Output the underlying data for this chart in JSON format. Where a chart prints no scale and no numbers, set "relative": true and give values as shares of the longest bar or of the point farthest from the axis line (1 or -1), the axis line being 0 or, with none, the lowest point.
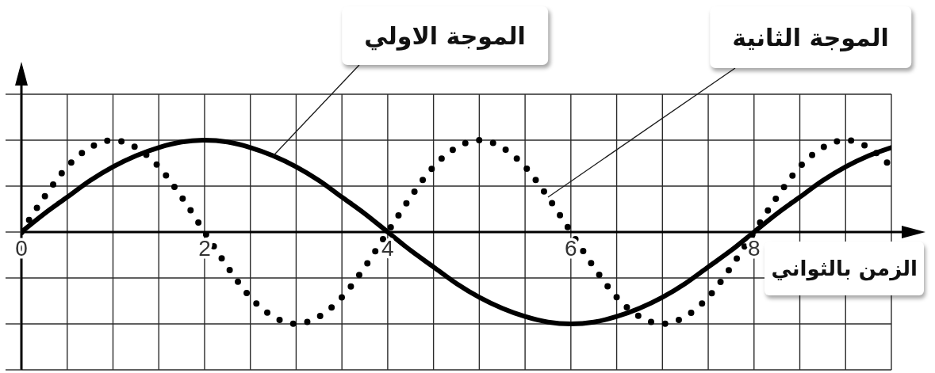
{
  "chart_data": {
    "type": "line",
    "relative": true,
    "xlabel": "الزمن بالثواني",
    "x": [
      0,
      0.25,
      0.5,
      0.75,
      1,
      1.25,
      1.5,
      1.75,
      2,
      2.25,
      2.5,
      2.75,
      3,
      3.25,
      3.5,
      3.75,
      4,
      4.25,
      4.5,
      4.75,
      5,
      5.25,
      5.5,
      5.75,
      6,
      6.25,
      6.5,
      6.75,
      7,
      7.25,
      7.5,
      7.75,
      8,
      8.25,
      8.5,
      8.75,
      9,
      9.25,
      9.5
    ],
    "xlim": [
      0,
      9.5
    ],
    "xticks": [
      0,
      {
        "value": 0.5,
        "label": null
      },
      {
        "value": 1,
        "label": null
      },
      {
        "value": 1.5,
        "label": null
      },
      2,
      {
        "value": 2.5,
        "label": null
      },
      {
        "value": 3,
        "label": null
      },
      {
        "value": 3.5,
        "label": null
      },
      4,
      {
        "value": 4.5,
        "label": null
      },
      {
        "value": 5,
        "label": null
      },
      {
        "value": 5.5,
        "label": null
      },
      6,
      {
        "value": 6.5,
        "label": null
      },
      {
        "value": 7,
        "label": null
      },
      {
        "value": 7.5,
        "label": null
      },
      8,
      {
        "value": 8.5,
        "label": null
      },
      {
        "value": 9,
        "label": null
      },
      {
        "value": 9.5,
        "label": null
      }
    ],
    "grid": true,
    "marker": "none",
    "series": [
      {
        "name": "الموجة الاولي",
        "color": "#000000",
        "line_style": "solid",
        "values": [
          0,
          0.2,
          0.38,
          0.56,
          0.71,
          0.83,
          0.92,
          0.98,
          1,
          0.98,
          0.92,
          0.83,
          0.71,
          0.56,
          0.38,
          0.2,
          0,
          -0.2,
          -0.38,
          -0.56,
          -0.71,
          -0.83,
          -0.92,
          -0.98,
          -1,
          -0.98,
          -0.92,
          -0.83,
          -0.71,
          -0.56,
          -0.38,
          -0.2,
          0,
          0.2,
          0.38,
          0.56,
          0.71,
          0.83,
          0.92
        ]
      },
      {
        "name": "الموجة الثانية",
        "color": "#000000",
        "line_style": "dotted",
        "values": [
          0,
          0.38,
          0.71,
          0.92,
          1,
          0.92,
          0.71,
          0.38,
          0,
          -0.38,
          -0.71,
          -0.92,
          -1,
          -0.92,
          -0.71,
          -0.38,
          0,
          0.38,
          0.71,
          0.92,
          1,
          0.92,
          0.71,
          0.38,
          0,
          -0.38,
          -0.71,
          -0.92,
          -1,
          -0.92,
          -0.71,
          -0.38,
          0,
          0.38,
          0.71,
          0.92,
          1,
          0.92,
          0.71
        ]
      }
    ]
  }
}
